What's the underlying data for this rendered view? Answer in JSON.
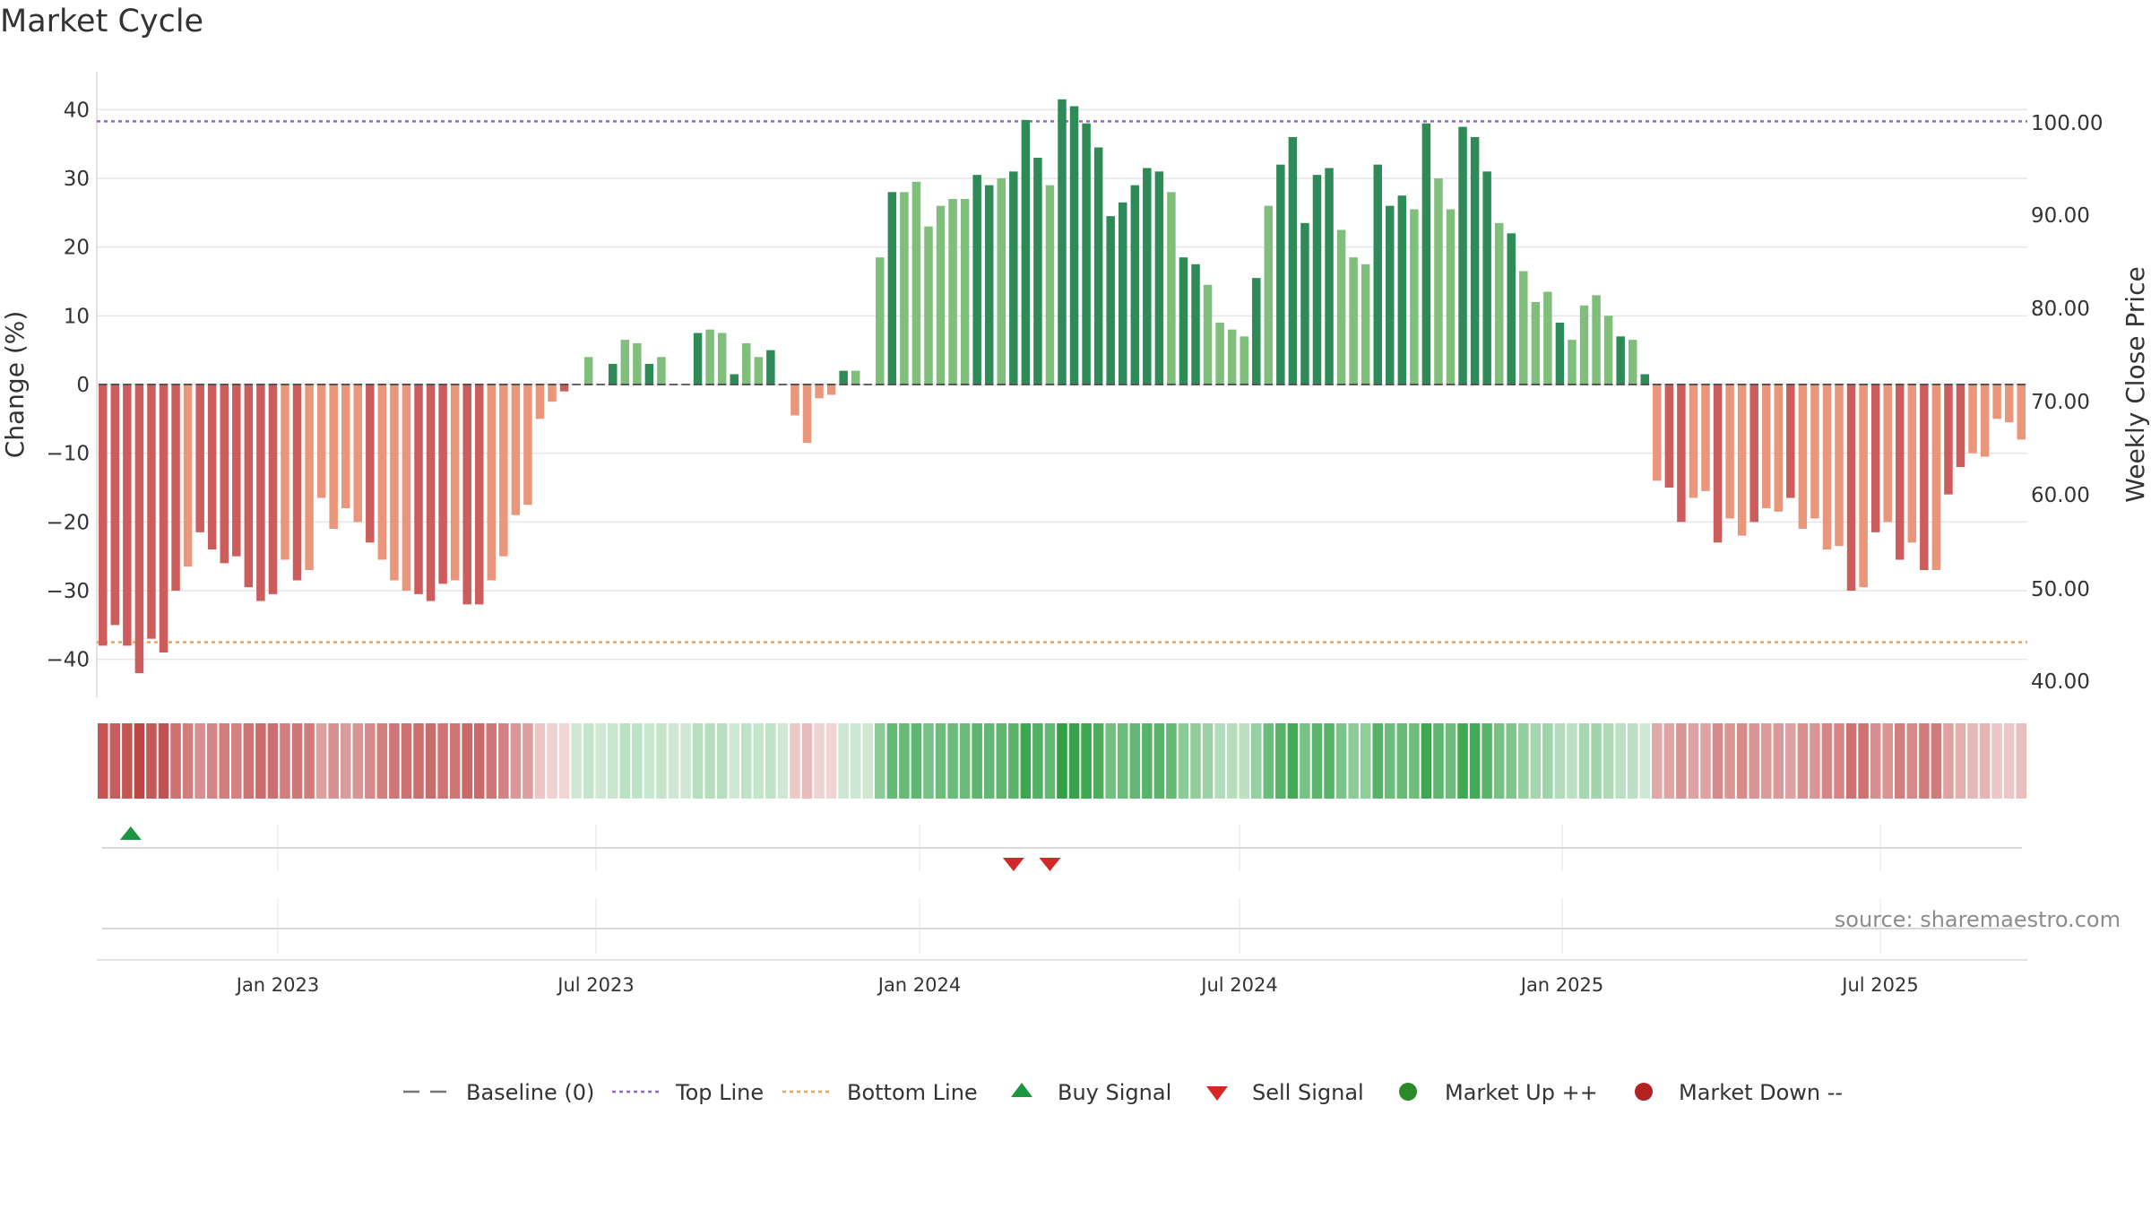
{
  "chart_data": {
    "type": "bar",
    "title": "Market Cycle",
    "ylabel": "Change (%)",
    "y2label": "Weekly Close Price",
    "ylim": [
      -45,
      45
    ],
    "y_ticks": [
      "40",
      "30",
      "20",
      "10",
      "0",
      "−10",
      "−20",
      "−30",
      "−40"
    ],
    "y2_ticks": [
      "100.00",
      "90.00",
      "80.00",
      "70.00",
      "60.00",
      "50.00",
      "40.00"
    ],
    "x_ticks": [
      "Jan 2023",
      "Jul 2023",
      "Jan 2024",
      "Jul 2024",
      "Jan 2025",
      "Jul 2025"
    ],
    "top_line": 38.3,
    "bottom_line": -37.5,
    "values": [
      -38,
      -35,
      -38,
      -42,
      -37,
      -39,
      -30,
      -26.5,
      -21.5,
      -24,
      -26,
      -25,
      -29.5,
      -31.5,
      -30.5,
      -25.5,
      -28.5,
      -27,
      -16.5,
      -21,
      -18,
      -20,
      -23,
      -25.5,
      -28.5,
      -30,
      -30.5,
      -31.5,
      -29,
      -28.5,
      -32,
      -32,
      -28.5,
      -25,
      -19,
      -17.5,
      -5,
      -2.5,
      -1,
      0,
      4,
      0,
      3,
      6.5,
      6,
      3,
      4,
      0,
      0,
      7.5,
      8,
      7.5,
      1.5,
      6,
      4,
      5,
      0,
      -4.5,
      -8.5,
      -2,
      -1.5,
      2,
      2,
      0,
      18.5,
      28,
      28,
      29.5,
      23,
      26,
      27,
      27,
      30.5,
      29,
      30,
      31,
      38.5,
      33,
      29,
      41.5,
      40.5,
      38,
      34.5,
      24.5,
      26.5,
      29,
      31.5,
      31,
      28,
      18.5,
      17.5,
      14.5,
      9,
      8,
      7,
      15.5,
      26,
      32,
      36,
      23.5,
      30.5,
      31.5,
      22.5,
      18.5,
      17.5,
      32,
      26,
      27.5,
      25.5,
      38,
      30,
      25.5,
      37.5,
      36,
      31,
      23.5,
      22,
      16.5,
      12,
      13.5,
      9,
      6.5,
      11.5,
      13,
      10,
      7,
      6.5,
      1.5,
      -14,
      -15,
      -20,
      -16.5,
      -15.5,
      -23,
      -19.5,
      -22,
      -20,
      -18,
      -18.5,
      -16.5,
      -21,
      -19.5,
      -24,
      -23.5,
      -30,
      -29.5,
      -21.5,
      -20,
      -25.5,
      -23,
      -27,
      -27,
      -16,
      -12,
      -10,
      -10.5,
      -5,
      -5.5,
      -8
    ],
    "buy_signals": [
      2
    ],
    "sell_signals": [
      75,
      78
    ],
    "legend": [
      "Baseline (0)",
      "Top Line",
      "Bottom Line",
      "Buy Signal",
      "Sell Signal",
      "Market Up ++",
      "Market Down --"
    ],
    "source": "source: sharemaestro.com",
    "colors": {
      "up_strong": "#2e8b57",
      "up_light": "#7fbf7b",
      "down_strong": "#cd5c5c",
      "down_light": "#e9967a",
      "top_line": "#9467bd",
      "bottom_line": "#e8a65a",
      "buy": "#1a9641",
      "sell": "#d62728",
      "market_up": "#2a8a2a",
      "market_down": "#b22222"
    },
    "grid": true,
    "legend_position": "bottom"
  }
}
